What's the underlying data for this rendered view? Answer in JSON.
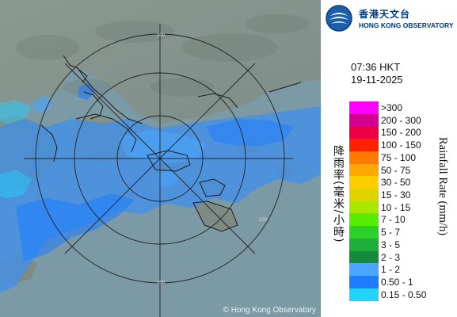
{
  "map": {
    "copyright": "© Hong Kong Observatory",
    "range_rings": [
      "100",
      "100",
      "100"
    ]
  },
  "logo": {
    "zh": "香港天文台",
    "en": "HONG KONG OBSERVATORY"
  },
  "timestamp": {
    "time": "07:36 HKT",
    "date": "19-11-2025"
  },
  "legend": {
    "label_zh": "降雨率(毫米/小時)",
    "label_en": "Rainfall Rate (mm/h)",
    "items": [
      {
        "range": ">300",
        "color": "#ff00ff"
      },
      {
        "range": "200 - 300",
        "color": "#d3008f"
      },
      {
        "range": "150 - 200",
        "color": "#ee0044"
      },
      {
        "range": "100 - 150",
        "color": "#ff2200"
      },
      {
        "range": "75 - 100",
        "color": "#ff7a00"
      },
      {
        "range": "50 - 75",
        "color": "#ffa800"
      },
      {
        "range": "30 - 50",
        "color": "#ffcc00"
      },
      {
        "range": "15 - 30",
        "color": "#e0d400"
      },
      {
        "range": "10 - 15",
        "color": "#a8e800"
      },
      {
        "range": "7 - 10",
        "color": "#55ee00"
      },
      {
        "range": "5 - 7",
        "color": "#2bd02b"
      },
      {
        "range": "3 - 5",
        "color": "#1fad3a"
      },
      {
        "range": "2 - 3",
        "color": "#168a3c"
      },
      {
        "range": "1 - 2",
        "color": "#4aa6ff"
      },
      {
        "range": "0.50 - 1",
        "color": "#1e7cff"
      },
      {
        "range": "0.15 - 0.50",
        "color": "#22d3ff"
      }
    ]
  }
}
